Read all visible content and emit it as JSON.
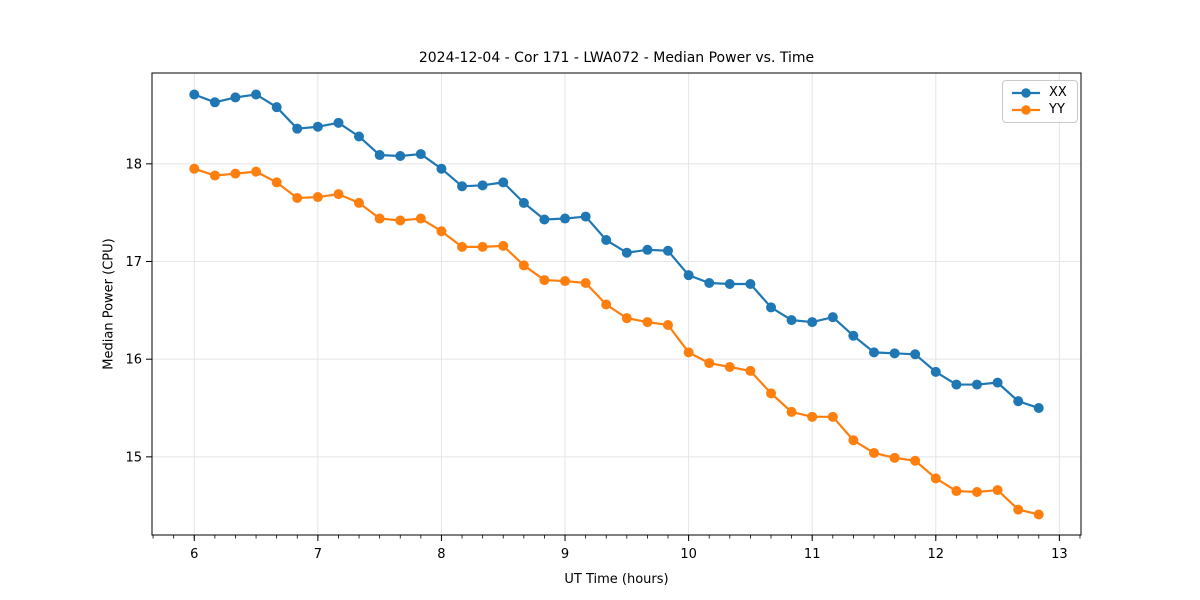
{
  "figure": {
    "background": "#ffffff"
  },
  "chart_data": {
    "type": "line",
    "title": "2024-12-04 - Cor 171 - LWA072 - Median Power vs. Time",
    "xlabel": "UT Time (hours)",
    "ylabel": "Median Power (CPU)",
    "x": [
      6.0,
      6.167,
      6.333,
      6.5,
      6.667,
      6.833,
      7.0,
      7.167,
      7.333,
      7.5,
      7.667,
      7.833,
      8.0,
      8.167,
      8.333,
      8.5,
      8.667,
      8.833,
      9.0,
      9.167,
      9.333,
      9.5,
      9.667,
      9.833,
      10.0,
      10.167,
      10.333,
      10.5,
      10.667,
      10.833,
      11.0,
      11.167,
      11.333,
      11.5,
      11.667,
      11.833,
      12.0,
      12.167,
      12.333,
      12.5,
      12.667,
      12.833
    ],
    "series": [
      {
        "name": "XX",
        "color": "#1f77b4",
        "values": [
          18.71,
          18.63,
          18.68,
          18.71,
          18.58,
          18.36,
          18.38,
          18.42,
          18.28,
          18.09,
          18.08,
          18.1,
          17.95,
          17.77,
          17.78,
          17.81,
          17.6,
          17.43,
          17.44,
          17.46,
          17.22,
          17.09,
          17.12,
          17.11,
          16.86,
          16.78,
          16.77,
          16.77,
          16.53,
          16.4,
          16.38,
          16.43,
          16.24,
          16.07,
          16.06,
          16.05,
          15.87,
          15.74,
          15.74,
          15.76,
          15.57,
          15.5
        ]
      },
      {
        "name": "YY",
        "color": "#ff7f0e",
        "values": [
          17.95,
          17.88,
          17.9,
          17.92,
          17.81,
          17.65,
          17.66,
          17.69,
          17.6,
          17.44,
          17.42,
          17.44,
          17.31,
          17.15,
          17.15,
          17.16,
          16.96,
          16.81,
          16.8,
          16.78,
          16.56,
          16.42,
          16.38,
          16.35,
          16.07,
          15.96,
          15.92,
          15.88,
          15.65,
          15.46,
          15.41,
          15.41,
          15.17,
          15.04,
          14.99,
          14.96,
          14.78,
          14.65,
          14.64,
          14.66,
          14.46,
          14.41
        ]
      }
    ],
    "x_ticks": [
      6,
      7,
      8,
      9,
      10,
      11,
      12,
      13
    ],
    "y_ticks": [
      15,
      16,
      17,
      18
    ],
    "x_minor_step": 0.1666667,
    "xlim": [
      5.658,
      13.175
    ],
    "ylim": [
      14.2,
      18.93
    ],
    "grid": true,
    "legend_position": "upper right",
    "marker": "circle"
  }
}
